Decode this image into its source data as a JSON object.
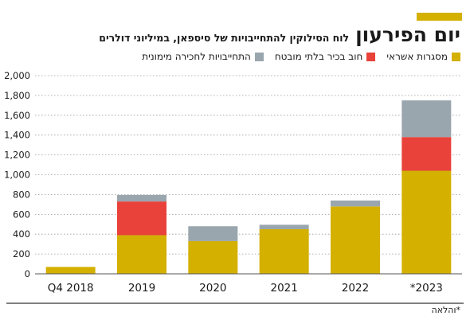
{
  "header": {
    "title": "יום הפירעון",
    "subtitle": "לוח הסילוקין להתחייבויות של סיספאן, במיליוני דולרים"
  },
  "footnote": "*והלאה",
  "colors": {
    "accent": "#d4b000",
    "credit_lines": "#d4b000",
    "senior_debt": "#e8423b",
    "unsecured": "#9aa6ae",
    "axis": "#333333",
    "grid": "#9a9a9a"
  },
  "chart_data": {
    "type": "bar",
    "stacked": true,
    "categories": [
      "Q4 2018",
      "2019",
      "2020",
      "2021",
      "2022",
      "*2023"
    ],
    "series": [
      {
        "name": "מסגרות אשראי",
        "color": "#d4b000",
        "values": [
          70,
          390,
          330,
          450,
          680,
          1040
        ]
      },
      {
        "name": "חוב בכיר בלתי מובטח",
        "color": "#e8423b",
        "values": [
          0,
          340,
          0,
          0,
          0,
          340
        ]
      },
      {
        "name": "התחייבויות לחכירה מימונית",
        "color": "#9aa6ae",
        "values": [
          0,
          65,
          150,
          45,
          60,
          370
        ]
      }
    ],
    "ylim": [
      0,
      2000
    ],
    "yticks": [
      0,
      200,
      400,
      600,
      800,
      1000,
      1200,
      1400,
      1600,
      1800,
      2000
    ],
    "ytick_labels": [
      "0",
      "200",
      "400",
      "600",
      "800",
      "1,000",
      "1,200",
      "1,400",
      "1,600",
      "1,800",
      "2,000"
    ],
    "grid": true,
    "legend_position": "top-right"
  }
}
